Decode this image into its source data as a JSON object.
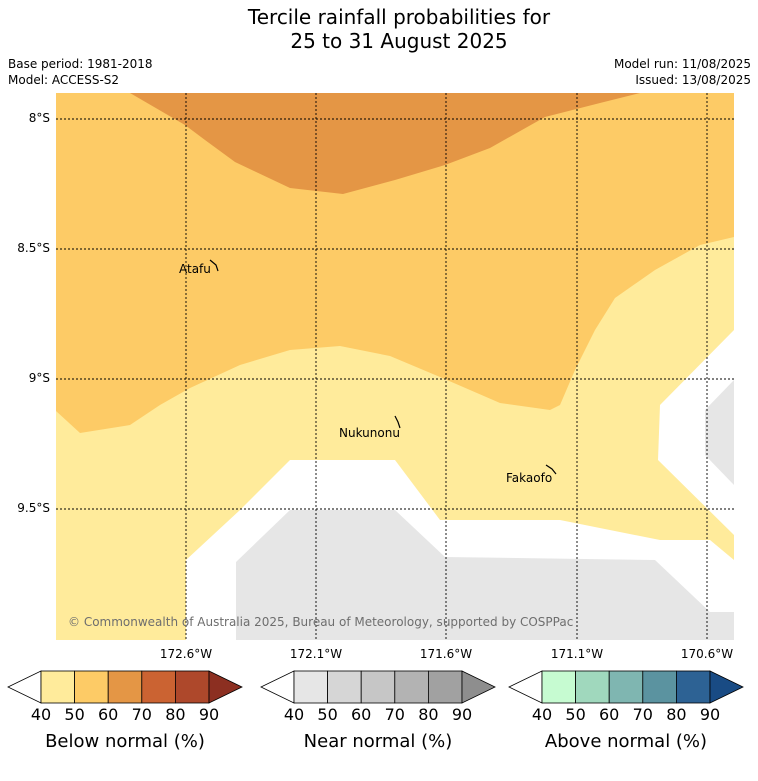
{
  "title": {
    "line1": "Tercile rainfall probabilities for",
    "line2": "25 to 31 August 2025"
  },
  "meta": {
    "base_period": "Base period: 1981-2018",
    "model": "Model: ACCESS-S2",
    "model_run": "Model run: 11/08/2025",
    "issued": "Issued: 13/08/2025"
  },
  "map": {
    "lat_labels": [
      "8°S",
      "8.5°S",
      "9°S",
      "9.5°S"
    ],
    "lon_labels": [
      "172.6°W",
      "172.1°W",
      "171.6°W",
      "171.1°W",
      "170.6°W"
    ],
    "places": [
      {
        "name": "Atafu"
      },
      {
        "name": "Nukunonu"
      },
      {
        "name": "Fakaofo"
      }
    ],
    "copyright": "© Commonwealth of Australia 2025, Bureau of Meteorology, supported by COSPPac"
  },
  "colorbars": [
    {
      "title": "Below normal (%)",
      "ticks": [
        "40",
        "50",
        "60",
        "70",
        "80",
        "90"
      ],
      "colors": [
        "#ffffff",
        "#ffeb9b",
        "#fdcb66",
        "#e49645",
        "#cb6332",
        "#ae482b",
        "#8c2f21"
      ]
    },
    {
      "title": "Near normal (%)",
      "ticks": [
        "40",
        "50",
        "60",
        "70",
        "80",
        "90"
      ],
      "colors": [
        "#ffffff",
        "#e6e6e6",
        "#d6d6d6",
        "#c6c6c6",
        "#b3b3b3",
        "#a1a1a1",
        "#8e8e8e"
      ]
    },
    {
      "title": "Above normal (%)",
      "ticks": [
        "40",
        "50",
        "60",
        "70",
        "80",
        "90"
      ],
      "colors": [
        "#ffffff",
        "#c6fbd1",
        "#a0d8bd",
        "#7fb6b1",
        "#5b93a0",
        "#2d6294",
        "#194b84"
      ]
    }
  ]
}
